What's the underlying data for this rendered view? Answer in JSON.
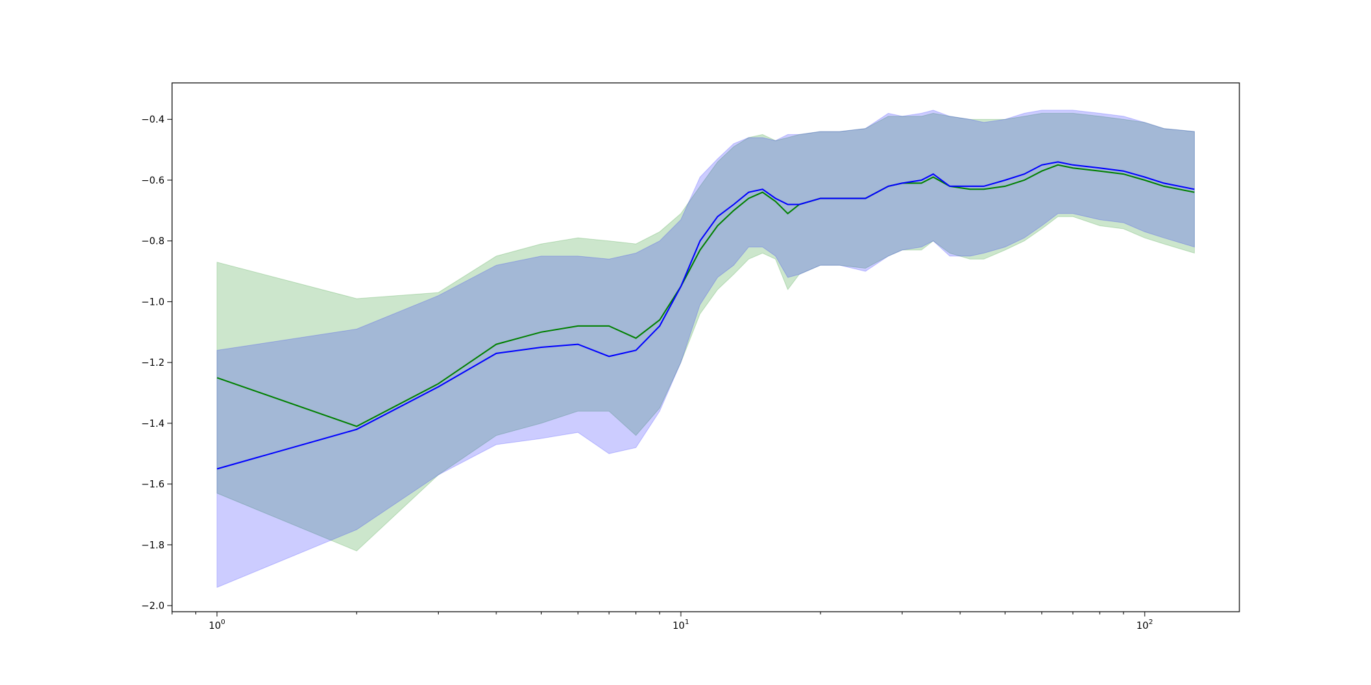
{
  "chart_data": {
    "type": "area",
    "xscale": "log",
    "yscale": "linear",
    "xlim": [
      0.8,
      160
    ],
    "ylim": [
      -2.02,
      -0.28
    ],
    "grid": false,
    "legend": "none",
    "x_major_ticks": [
      {
        "value": 1,
        "base": "10",
        "exp": "0"
      },
      {
        "value": 10,
        "base": "10",
        "exp": "1"
      },
      {
        "value": 100,
        "base": "10",
        "exp": "2"
      }
    ],
    "x_minor_ticks": [
      0.8,
      0.9,
      2,
      3,
      4,
      5,
      6,
      7,
      8,
      9,
      20,
      30,
      40,
      50,
      60,
      70,
      80,
      90
    ],
    "y_ticks": [
      {
        "value": -2.0,
        "label": "−2.0"
      },
      {
        "value": -1.8,
        "label": "−1.8"
      },
      {
        "value": -1.6,
        "label": "−1.6"
      },
      {
        "value": -1.4,
        "label": "−1.4"
      },
      {
        "value": -1.2,
        "label": "−1.2"
      },
      {
        "value": -1.0,
        "label": "−1.0"
      },
      {
        "value": -0.8,
        "label": "−0.8"
      },
      {
        "value": -0.6,
        "label": "−0.6"
      },
      {
        "value": -0.4,
        "label": "−0.4"
      }
    ],
    "series": [
      {
        "color": "#008000",
        "band_color": "#008000",
        "band_opacity": 0.2,
        "points": [
          {
            "x": 1,
            "mean": -1.25,
            "lower": -1.63,
            "upper": -0.87
          },
          {
            "x": 2,
            "mean": -1.41,
            "lower": -1.82,
            "upper": -0.99
          },
          {
            "x": 3,
            "mean": -1.27,
            "lower": -1.57,
            "upper": -0.97
          },
          {
            "x": 4,
            "mean": -1.14,
            "lower": -1.44,
            "upper": -0.85
          },
          {
            "x": 5,
            "mean": -1.1,
            "lower": -1.4,
            "upper": -0.81
          },
          {
            "x": 6,
            "mean": -1.08,
            "lower": -1.36,
            "upper": -0.79
          },
          {
            "x": 7,
            "mean": -1.08,
            "lower": -1.36,
            "upper": -0.8
          },
          {
            "x": 8,
            "mean": -1.12,
            "lower": -1.44,
            "upper": -0.81
          },
          {
            "x": 9,
            "mean": -1.06,
            "lower": -1.35,
            "upper": -0.77
          },
          {
            "x": 10,
            "mean": -0.95,
            "lower": -1.2,
            "upper": -0.71
          },
          {
            "x": 11,
            "mean": -0.83,
            "lower": -1.04,
            "upper": -0.62
          },
          {
            "x": 12,
            "mean": -0.75,
            "lower": -0.96,
            "upper": -0.54
          },
          {
            "x": 13,
            "mean": -0.7,
            "lower": -0.91,
            "upper": -0.49
          },
          {
            "x": 14,
            "mean": -0.66,
            "lower": -0.86,
            "upper": -0.46
          },
          {
            "x": 15,
            "mean": -0.64,
            "lower": -0.84,
            "upper": -0.45
          },
          {
            "x": 16,
            "mean": -0.67,
            "lower": -0.86,
            "upper": -0.47
          },
          {
            "x": 17,
            "mean": -0.71,
            "lower": -0.96,
            "upper": -0.46
          },
          {
            "x": 18,
            "mean": -0.68,
            "lower": -0.91,
            "upper": -0.45
          },
          {
            "x": 20,
            "mean": -0.66,
            "lower": -0.88,
            "upper": -0.44
          },
          {
            "x": 22,
            "mean": -0.66,
            "lower": -0.88,
            "upper": -0.44
          },
          {
            "x": 25,
            "mean": -0.66,
            "lower": -0.89,
            "upper": -0.43
          },
          {
            "x": 28,
            "mean": -0.62,
            "lower": -0.85,
            "upper": -0.39
          },
          {
            "x": 30,
            "mean": -0.61,
            "lower": -0.83,
            "upper": -0.39
          },
          {
            "x": 33,
            "mean": -0.61,
            "lower": -0.83,
            "upper": -0.39
          },
          {
            "x": 35,
            "mean": -0.59,
            "lower": -0.8,
            "upper": -0.38
          },
          {
            "x": 38,
            "mean": -0.62,
            "lower": -0.84,
            "upper": -0.39
          },
          {
            "x": 42,
            "mean": -0.63,
            "lower": -0.86,
            "upper": -0.4
          },
          {
            "x": 45,
            "mean": -0.63,
            "lower": -0.86,
            "upper": -0.4
          },
          {
            "x": 50,
            "mean": -0.62,
            "lower": -0.83,
            "upper": -0.4
          },
          {
            "x": 55,
            "mean": -0.6,
            "lower": -0.8,
            "upper": -0.39
          },
          {
            "x": 60,
            "mean": -0.57,
            "lower": -0.76,
            "upper": -0.38
          },
          {
            "x": 65,
            "mean": -0.55,
            "lower": -0.72,
            "upper": -0.38
          },
          {
            "x": 70,
            "mean": -0.56,
            "lower": -0.72,
            "upper": -0.38
          },
          {
            "x": 80,
            "mean": -0.57,
            "lower": -0.75,
            "upper": -0.39
          },
          {
            "x": 90,
            "mean": -0.58,
            "lower": -0.76,
            "upper": -0.4
          },
          {
            "x": 100,
            "mean": -0.6,
            "lower": -0.79,
            "upper": -0.41
          },
          {
            "x": 110,
            "mean": -0.62,
            "lower": -0.81,
            "upper": -0.43
          },
          {
            "x": 128,
            "mean": -0.64,
            "lower": -0.84,
            "upper": -0.44
          }
        ]
      },
      {
        "color": "#0000ff",
        "band_color": "#0000ff",
        "band_opacity": 0.2,
        "points": [
          {
            "x": 1,
            "mean": -1.55,
            "lower": -1.94,
            "upper": -1.16
          },
          {
            "x": 2,
            "mean": -1.42,
            "lower": -1.75,
            "upper": -1.09
          },
          {
            "x": 3,
            "mean": -1.28,
            "lower": -1.57,
            "upper": -0.98
          },
          {
            "x": 4,
            "mean": -1.17,
            "lower": -1.47,
            "upper": -0.88
          },
          {
            "x": 5,
            "mean": -1.15,
            "lower": -1.45,
            "upper": -0.85
          },
          {
            "x": 6,
            "mean": -1.14,
            "lower": -1.43,
            "upper": -0.85
          },
          {
            "x": 7,
            "mean": -1.18,
            "lower": -1.5,
            "upper": -0.86
          },
          {
            "x": 8,
            "mean": -1.16,
            "lower": -1.48,
            "upper": -0.84
          },
          {
            "x": 9,
            "mean": -1.08,
            "lower": -1.36,
            "upper": -0.8
          },
          {
            "x": 10,
            "mean": -0.95,
            "lower": -1.2,
            "upper": -0.73
          },
          {
            "x": 11,
            "mean": -0.8,
            "lower": -1.01,
            "upper": -0.59
          },
          {
            "x": 12,
            "mean": -0.72,
            "lower": -0.92,
            "upper": -0.53
          },
          {
            "x": 13,
            "mean": -0.68,
            "lower": -0.88,
            "upper": -0.48
          },
          {
            "x": 14,
            "mean": -0.64,
            "lower": -0.82,
            "upper": -0.46
          },
          {
            "x": 15,
            "mean": -0.63,
            "lower": -0.82,
            "upper": -0.46
          },
          {
            "x": 16,
            "mean": -0.66,
            "lower": -0.85,
            "upper": -0.47
          },
          {
            "x": 17,
            "mean": -0.68,
            "lower": -0.92,
            "upper": -0.45
          },
          {
            "x": 18,
            "mean": -0.68,
            "lower": -0.91,
            "upper": -0.45
          },
          {
            "x": 20,
            "mean": -0.66,
            "lower": -0.88,
            "upper": -0.44
          },
          {
            "x": 22,
            "mean": -0.66,
            "lower": -0.88,
            "upper": -0.44
          },
          {
            "x": 25,
            "mean": -0.66,
            "lower": -0.9,
            "upper": -0.43
          },
          {
            "x": 28,
            "mean": -0.62,
            "lower": -0.85,
            "upper": -0.38
          },
          {
            "x": 30,
            "mean": -0.61,
            "lower": -0.83,
            "upper": -0.39
          },
          {
            "x": 33,
            "mean": -0.6,
            "lower": -0.82,
            "upper": -0.38
          },
          {
            "x": 35,
            "mean": -0.58,
            "lower": -0.8,
            "upper": -0.37
          },
          {
            "x": 38,
            "mean": -0.62,
            "lower": -0.85,
            "upper": -0.39
          },
          {
            "x": 42,
            "mean": -0.62,
            "lower": -0.85,
            "upper": -0.4
          },
          {
            "x": 45,
            "mean": -0.62,
            "lower": -0.84,
            "upper": -0.41
          },
          {
            "x": 50,
            "mean": -0.6,
            "lower": -0.82,
            "upper": -0.4
          },
          {
            "x": 55,
            "mean": -0.58,
            "lower": -0.79,
            "upper": -0.38
          },
          {
            "x": 60,
            "mean": -0.55,
            "lower": -0.75,
            "upper": -0.37
          },
          {
            "x": 65,
            "mean": -0.54,
            "lower": -0.71,
            "upper": -0.37
          },
          {
            "x": 70,
            "mean": -0.55,
            "lower": -0.71,
            "upper": -0.37
          },
          {
            "x": 80,
            "mean": -0.56,
            "lower": -0.73,
            "upper": -0.38
          },
          {
            "x": 90,
            "mean": -0.57,
            "lower": -0.74,
            "upper": -0.39
          },
          {
            "x": 100,
            "mean": -0.59,
            "lower": -0.77,
            "upper": -0.41
          },
          {
            "x": 110,
            "mean": -0.61,
            "lower": -0.79,
            "upper": -0.43
          },
          {
            "x": 128,
            "mean": -0.63,
            "lower": -0.82,
            "upper": -0.44
          }
        ]
      }
    ]
  }
}
